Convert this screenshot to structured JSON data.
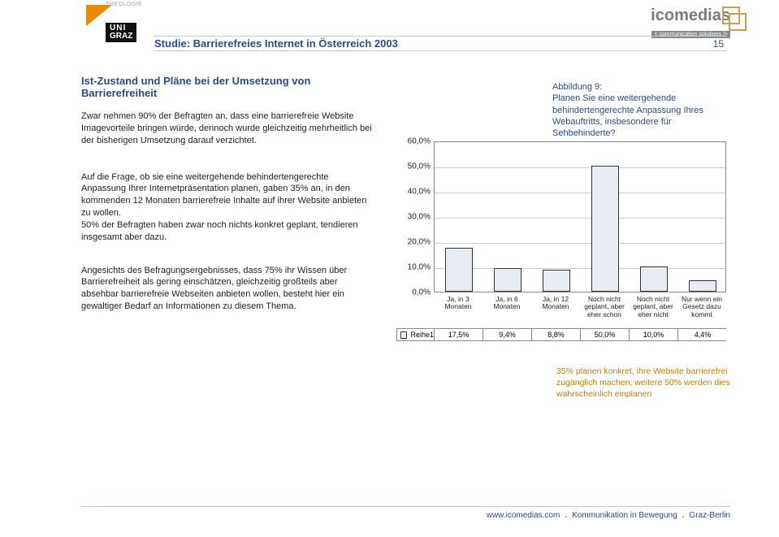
{
  "header": {
    "theologie": "THEOLOGIE",
    "uni": "UNI",
    "graz": "GRAZ",
    "brand_left": "ico",
    "brand_right": "medias",
    "brand_tag": "< communication solutions />",
    "title": "Studie: Barrierefreies Internet in Österreich 2003",
    "page_number": "15"
  },
  "section": {
    "title": "Ist-Zustand und Pläne bei der Umsetzung von Barrierefreiheit",
    "para1": "Zwar nehmen 90% der Befragten an, dass eine barrierefreie Website Imagevorteile bringen würde, dennoch wurde gleichzeitig mehrheitlich bei der bisherigen Umsetzung darauf verzichtet.",
    "para2": "Auf die Frage, ob sie eine weitergehende behindertengerechte Anpassung Ihrer Internetpräsentation planen, gaben 35% an, in den kommenden 12 Monaten barrierefreie Inhalte auf ihrer Website anbieten zu wollen.\n50% der Befragten haben zwar noch nichts konkret geplant, tendieren insgesamt aber dazu.",
    "para3": "Angesichts des Befragungsergebnisses, dass 75% ihr Wissen über Barrierefreiheit als gering einschätzen, gleichzeitig großteils aber absehbar barrierefreie Webseiten anbieten wollen, besteht hier ein gewaltiger Bedarf an Informationen zu diesem Thema."
  },
  "caption": {
    "label": "Abbildung 9:",
    "text": "Planen Sie eine weitergehende behindertengerechte Anpassung Ihres Webauftritts, insbesondere für Sehbehinderte?"
  },
  "summary": "35% planen konkret, ihre Website barrierefrei zugänglich machen, weitere 50% werden dies wahrscheinlich einplanen",
  "chart": {
    "type": "bar",
    "y_ticks": [
      "60,0%",
      "50,0%",
      "40,0%",
      "30,0%",
      "20,0%",
      "10,0%",
      "0,0%"
    ],
    "y_max": 60,
    "categories": [
      {
        "label": "Ja, in 3\nMonaten",
        "value": 17.5,
        "display": "17,5%"
      },
      {
        "label": "Ja, in 6\nMonaten",
        "value": 9.4,
        "display": "9,4%"
      },
      {
        "label": "Ja, in 12\nMonaten",
        "value": 8.8,
        "display": "8,8%"
      },
      {
        "label": "Noch nicht\ngeplant, aber\neher schon",
        "value": 50.0,
        "display": "50,0%"
      },
      {
        "label": "Noch nicht\ngeplant, aber\neher nicht",
        "value": 10.0,
        "display": "10,0%"
      },
      {
        "label": "Nur wenn ein\nGesetz dazu\nkommt",
        "value": 4.4,
        "display": "4,4%"
      }
    ],
    "series_label": "Reihe1",
    "bar_fill": "#e8edf4",
    "bar_border": "#333333",
    "grid_color": "#cccccc",
    "frame_color": "#888888",
    "font_size_axis": 10
  },
  "footer": {
    "url": "www.icomedias.com",
    "t1": "Kommunikation in Bewegung",
    "t2": "Graz-Berlin"
  }
}
